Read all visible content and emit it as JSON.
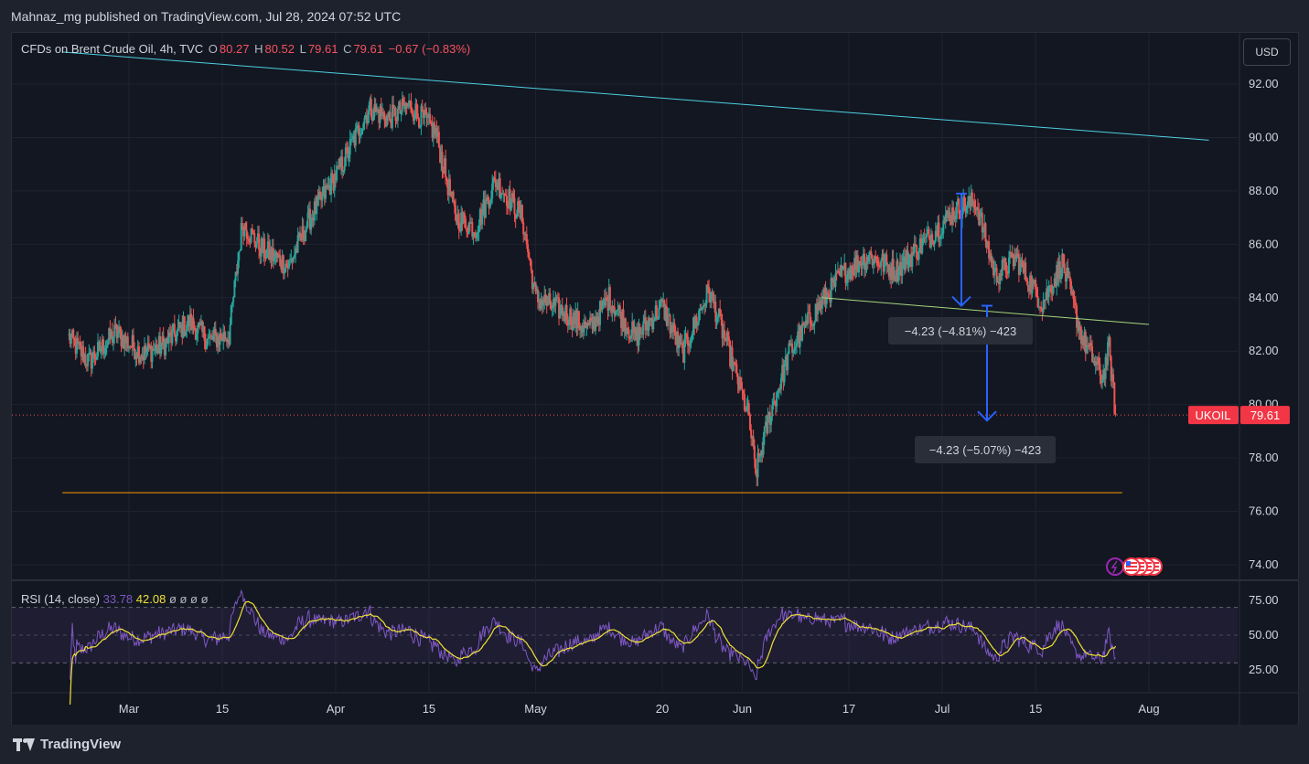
{
  "header": {
    "published": "Mahnaz_mg published on TradingView.com, Jul 28, 2024 07:52 UTC"
  },
  "legend": {
    "symbol": "CFDs on Brent Crude Oil, 4h, TVC",
    "o_label": "O",
    "o_value": "80.27",
    "h_label": "H",
    "h_value": "80.52",
    "l_label": "L",
    "l_value": "79.61",
    "c_label": "C",
    "c_value": "79.61",
    "change": "−0.67 (−0.83%)"
  },
  "rsi_legend": {
    "label": "RSI (14, close)",
    "rsi_value": "33.78",
    "ma_value": "42.08",
    "extras": "ø ø ø ø"
  },
  "currency_button": "USD",
  "price_tag": {
    "symbol": "UKOIL",
    "value": "79.61"
  },
  "measure_labels": [
    "−4.23 (−4.81%) −423",
    "−4.23 (−5.07%) −423"
  ],
  "footer": {
    "brand": "TradingView"
  },
  "colors": {
    "up": "#26a69a",
    "down": "#ef5350",
    "rsi_line": "#7e57c2",
    "rsi_ma": "#f0e036",
    "resistance": "#4dd0e1",
    "neckline": "#a5d67c",
    "support": "#ff9800",
    "arrow": "#2962ff"
  },
  "chart_data": {
    "type": "candlestick",
    "title": "CFDs on Brent Crude Oil, 4h, TVC",
    "ylim": [
      73.5,
      93.2
    ],
    "y_ticks": [
      "92.00",
      "90.00",
      "88.00",
      "86.00",
      "84.00",
      "82.00",
      "80.00",
      "78.00",
      "76.00",
      "74.00"
    ],
    "x_ticks": [
      "Mar",
      "15",
      "Apr",
      "15",
      "May",
      "20",
      "Jun",
      "17",
      "Jul",
      "15",
      "Aug"
    ],
    "series": [
      {
        "name": "UKOIL",
        "close_path": [
          [
            "Feb 21",
            82.5
          ],
          [
            "Feb 24",
            81.6
          ],
          [
            "Feb 28",
            82.7
          ],
          [
            "Mar 3",
            81.9
          ],
          [
            "Mar 6",
            82.2
          ],
          [
            "Mar 10",
            83.1
          ],
          [
            "Mar 13",
            82.4
          ],
          [
            "Mar 16",
            82.6
          ],
          [
            "Mar 18",
            86.8
          ],
          [
            "Mar 21",
            85.8
          ],
          [
            "Mar 25",
            85.2
          ],
          [
            "Mar 28",
            86.9
          ],
          [
            "Apr 2",
            89.0
          ],
          [
            "Apr 6",
            91.1
          ],
          [
            "Apr 9",
            90.7
          ],
          [
            "Apr 12",
            91.2
          ],
          [
            "Apr 16",
            90.2
          ],
          [
            "Apr 19",
            87.0
          ],
          [
            "Apr 22",
            86.6
          ],
          [
            "Apr 25",
            88.4
          ],
          [
            "Apr 29",
            87.0
          ],
          [
            "May 1",
            84.0
          ],
          [
            "May 5",
            83.5
          ],
          [
            "May 9",
            82.8
          ],
          [
            "May 12",
            84.0
          ],
          [
            "May 16",
            82.5
          ],
          [
            "May 20",
            83.7
          ],
          [
            "May 23",
            81.9
          ],
          [
            "May 27",
            84.3
          ],
          [
            "May 30",
            82.0
          ],
          [
            "Jun 2",
            79.5
          ],
          [
            "Jun 3",
            77.4
          ],
          [
            "Jun 5",
            79.5
          ],
          [
            "Jun 8",
            81.9
          ],
          [
            "Jun 12",
            83.5
          ],
          [
            "Jun 16",
            84.9
          ],
          [
            "Jun 20",
            85.6
          ],
          [
            "Jun 24",
            85.0
          ],
          [
            "Jun 28",
            86.0
          ],
          [
            "Jul 3",
            87.3
          ],
          [
            "Jul 6",
            87.6
          ],
          [
            "Jul 9",
            84.8
          ],
          [
            "Jul 12",
            85.5
          ],
          [
            "Jul 16",
            83.8
          ],
          [
            "Jul 19",
            85.3
          ],
          [
            "Jul 22",
            82.5
          ],
          [
            "Jul 25",
            81.0
          ],
          [
            "Jul 26",
            82.1
          ],
          [
            "Jul 27",
            79.61
          ]
        ]
      }
    ],
    "last_price": 79.61,
    "low": 76.7,
    "high": 92.1,
    "lines": [
      {
        "name": "downtrend resistance",
        "from": [
          "Feb 20",
          93.2
        ],
        "to": [
          "Aug 10",
          89.9
        ]
      },
      {
        "name": "neckline",
        "from": [
          "Jun 13",
          84.0
        ],
        "to": [
          "Aug 1",
          83.0
        ]
      },
      {
        "name": "support",
        "from": [
          "Feb 20",
          76.7
        ],
        "to": [
          "Jul 28",
          76.7
        ]
      }
    ],
    "measurements": [
      {
        "label": "−4.23 (−4.81%) −423",
        "from": 87.9,
        "to": 83.7
      },
      {
        "label": "−4.23 (−5.07%) −423",
        "from": 83.7,
        "to": 79.4
      }
    ],
    "rsi": {
      "name": "RSI (14, close)",
      "ylim": [
        20,
        80
      ],
      "ticks": [
        "75.00",
        "50.00",
        "25.00"
      ],
      "last": 33.78,
      "ma_last": 42.08
    }
  }
}
